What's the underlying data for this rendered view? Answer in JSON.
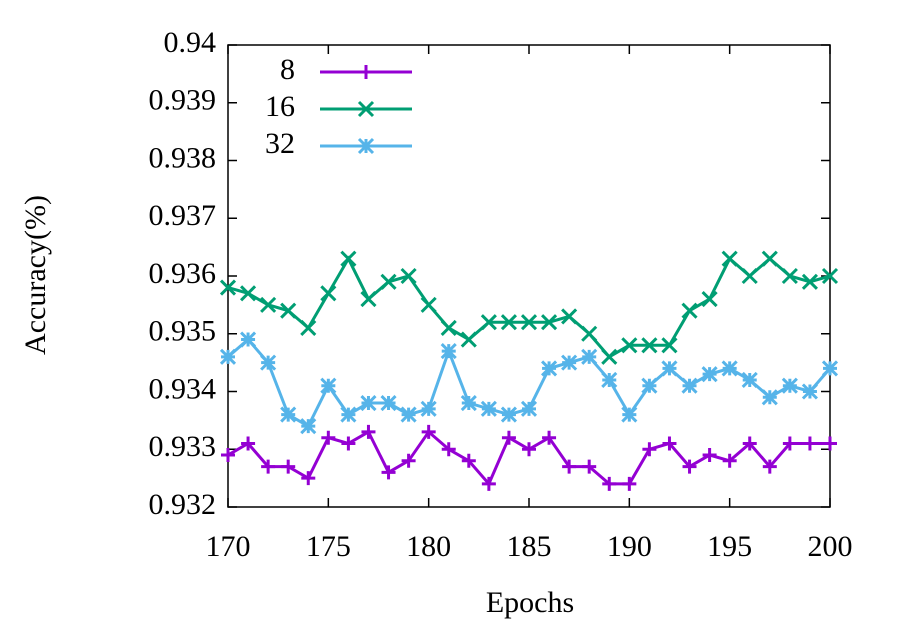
{
  "chart_data": {
    "type": "line",
    "x_label": "Epochs",
    "y_label": "Accuracy(%)",
    "x": [
      170,
      171,
      172,
      173,
      174,
      175,
      176,
      177,
      178,
      179,
      180,
      181,
      182,
      183,
      184,
      185,
      186,
      187,
      188,
      189,
      190,
      191,
      192,
      193,
      194,
      195,
      196,
      197,
      198,
      199,
      200
    ],
    "series": [
      {
        "name": "8",
        "color": "#9400d3",
        "marker": "plus",
        "values": [
          0.9329,
          0.9331,
          0.9327,
          0.9327,
          0.9325,
          0.9332,
          0.9331,
          0.9333,
          0.9326,
          0.9328,
          0.9333,
          0.933,
          0.9328,
          0.9324,
          0.9332,
          0.933,
          0.9332,
          0.9327,
          0.9327,
          0.9324,
          0.9324,
          0.933,
          0.9331,
          0.9327,
          0.9329,
          0.9328,
          0.9331,
          0.9327,
          0.9331,
          0.9331,
          0.9331
        ]
      },
      {
        "name": "16",
        "color": "#009e73",
        "marker": "cross",
        "values": [
          0.9358,
          0.9357,
          0.9355,
          0.9354,
          0.9351,
          0.9357,
          0.9363,
          0.9356,
          0.9359,
          0.936,
          0.9355,
          0.9351,
          0.9349,
          0.9352,
          0.9352,
          0.9352,
          0.9352,
          0.9353,
          0.935,
          0.9346,
          0.9348,
          0.9348,
          0.9348,
          0.9354,
          0.9356,
          0.9363,
          0.936,
          0.9363,
          0.936,
          0.9359,
          0.936
        ]
      },
      {
        "name": "32",
        "color": "#56b4e9",
        "marker": "star",
        "values": [
          0.9346,
          0.9349,
          0.9345,
          0.9336,
          0.9334,
          0.9341,
          0.9336,
          0.9338,
          0.9338,
          0.9336,
          0.9337,
          0.9347,
          0.9338,
          0.9337,
          0.9336,
          0.9337,
          0.9344,
          0.9345,
          0.9346,
          0.9342,
          0.9336,
          0.9341,
          0.9344,
          0.9341,
          0.9343,
          0.9344,
          0.9342,
          0.9339,
          0.9341,
          0.934,
          0.9344
        ]
      }
    ],
    "xlim": [
      170,
      200
    ],
    "xticks": [
      170,
      175,
      180,
      185,
      190,
      195,
      200
    ],
    "ylim": [
      0.932,
      0.94
    ],
    "yticks": [
      0.932,
      0.933,
      0.934,
      0.935,
      0.936,
      0.937,
      0.938,
      0.939,
      0.94
    ],
    "grid": false,
    "legend": "top-left"
  }
}
